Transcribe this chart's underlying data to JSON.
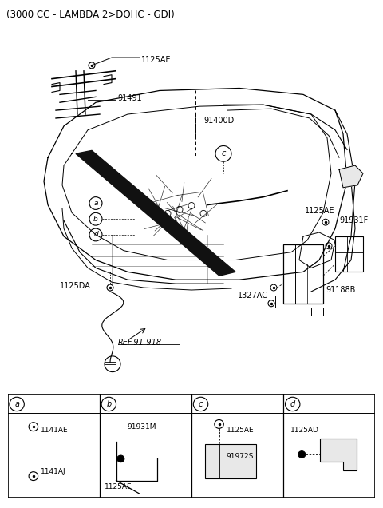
{
  "title": "(3000 CC - LAMBDA 2>DOHC - GDI)",
  "title_fontsize": 8.5,
  "fig_bg": "#ffffff",
  "lc": "#000000",
  "gray": "#888888",
  "lightgray": "#cccccc",
  "fs": 7.0,
  "sfs": 6.5,
  "bottom_table": {
    "cells": [
      {
        "label": "a",
        "parts": [
          "1141AE",
          "1141AJ"
        ]
      },
      {
        "label": "b",
        "parts": [
          "91931M",
          "1125AE"
        ]
      },
      {
        "label": "c",
        "parts": [
          "1125AE",
          "91972S"
        ]
      },
      {
        "label": "d",
        "parts": [
          "1125AD",
          ""
        ]
      }
    ]
  }
}
